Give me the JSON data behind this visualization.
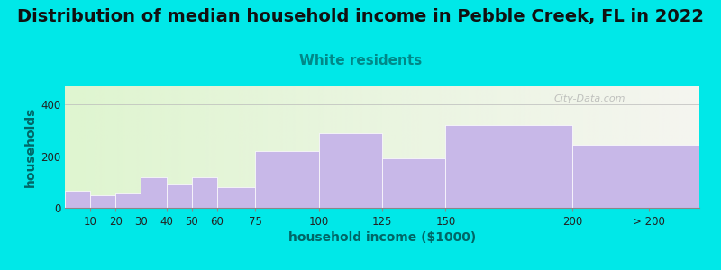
{
  "title": "Distribution of median household income in Pebble Creek, FL in 2022",
  "subtitle": "White residents",
  "xlabel": "household income ($1000)",
  "ylabel": "households",
  "bar_labels": [
    "10",
    "20",
    "30",
    "40",
    "50",
    "60",
    "75",
    "100",
    "125",
    "150",
    "200",
    "> 200"
  ],
  "bar_values": [
    65,
    50,
    55,
    120,
    90,
    120,
    80,
    220,
    290,
    190,
    320,
    245
  ],
  "bar_color": "#c8b8e8",
  "bar_edgecolor": "#ffffff",
  "yticks": [
    0,
    200,
    400
  ],
  "ylim": [
    0,
    470
  ],
  "background_outer": "#00e8e8",
  "plot_bg_left": "#dff5d0",
  "plot_bg_right": "#f5f5f0",
  "watermark": "City-Data.com",
  "title_fontsize": 14,
  "subtitle_fontsize": 11,
  "subtitle_color": "#008888",
  "ylabel_color": "#006666",
  "xlabel_color": "#006666",
  "title_color": "#111111"
}
